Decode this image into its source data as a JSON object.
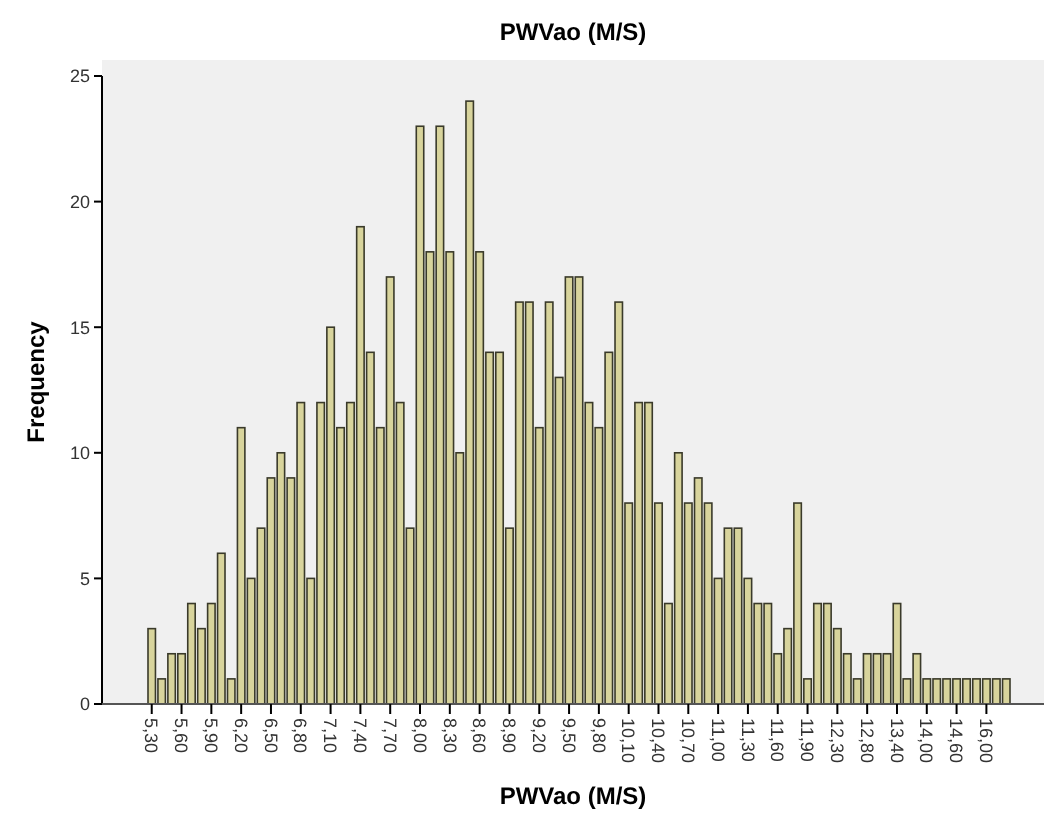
{
  "chart_data": {
    "type": "bar",
    "title": "PWVao (M/S)",
    "xlabel": "PWVao (M/S)",
    "ylabel": "Frequency",
    "categories": [
      "5,30",
      null,
      null,
      "5,60",
      null,
      null,
      "5,90",
      null,
      null,
      "6,20",
      null,
      null,
      "6,50",
      null,
      null,
      "6,80",
      null,
      null,
      "7,10",
      null,
      null,
      "7,40",
      null,
      null,
      "7,70",
      null,
      null,
      "8,00",
      null,
      null,
      "8,30",
      null,
      null,
      "8,60",
      null,
      null,
      "8,90",
      null,
      null,
      "9,20",
      null,
      null,
      "9,50",
      null,
      null,
      "9,80",
      null,
      null,
      "10,10",
      null,
      null,
      "10,40",
      null,
      null,
      "10,70",
      null,
      null,
      "11,00",
      null,
      null,
      "11,30",
      null,
      null,
      "11,60",
      null,
      null,
      "11,90",
      null,
      null,
      "12,30",
      null,
      null,
      "12,80",
      null,
      null,
      "13,40",
      null,
      null,
      "14,00",
      null,
      null,
      "14,60",
      null,
      null,
      "16,00",
      null,
      null
    ],
    "values": [
      3,
      1,
      2,
      2,
      4,
      3,
      4,
      6,
      1,
      11,
      5,
      7,
      9,
      10,
      9,
      12,
      5,
      12,
      15,
      11,
      12,
      19,
      14,
      11,
      17,
      12,
      7,
      23,
      18,
      23,
      18,
      10,
      24,
      18,
      14,
      14,
      7,
      16,
      16,
      11,
      16,
      13,
      17,
      17,
      12,
      11,
      14,
      16,
      8,
      12,
      12,
      8,
      4,
      10,
      8,
      9,
      8,
      5,
      7,
      7,
      5,
      4,
      4,
      2,
      3,
      8,
      1,
      4,
      4,
      3,
      2,
      1,
      2,
      2,
      2,
      4,
      1,
      2,
      1,
      1,
      1,
      1,
      1,
      1,
      1,
      1,
      1
    ],
    "color": "#d8d49c",
    "ylim": [
      0,
      25
    ],
    "yticks": [
      0,
      5,
      10,
      15,
      20,
      25
    ],
    "grid": false
  }
}
